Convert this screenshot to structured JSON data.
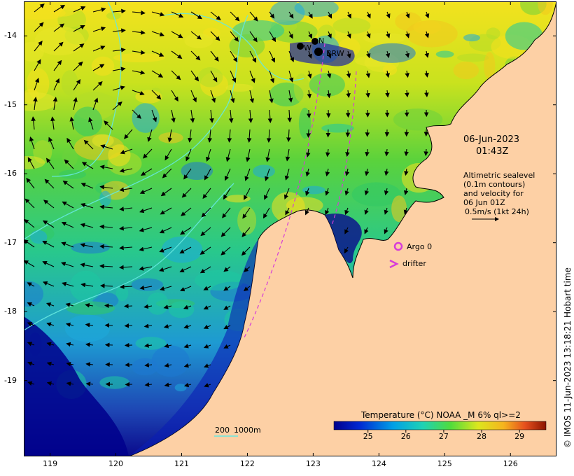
{
  "map": {
    "date": "06-Jun-2023",
    "time": "01:43Z",
    "altimetry_lines": [
      "Altimetric sealevel",
      "(0.1m contours)",
      "and velocity for",
      "06 Jun 01Z",
      "0.5m/s (1kt 24h)"
    ],
    "legend_argo": "Argo 0",
    "legend_drifter": "drifter",
    "colorbar_title": "Temperature (°C) NOAA _M 6% ql>=2",
    "colorbar_ticks": [
      "25",
      "26",
      "27",
      "28",
      "29"
    ],
    "colorbar_min": 24.1,
    "colorbar_max": 29.7,
    "depth_scale": [
      "200",
      "1000m"
    ],
    "station_labels": [
      "W",
      "N",
      "BRW"
    ],
    "credit": "© IMOS 11-Jun-2023 13:18:21 Hobart time",
    "lon_ticks": [
      "119",
      "120",
      "121",
      "122",
      "123",
      "124",
      "125",
      "126"
    ],
    "lat_ticks": [
      "-14",
      "-15",
      "-16",
      "-17",
      "-18",
      "-19"
    ],
    "lon_range": [
      118.6,
      126.7
    ],
    "lat_range": [
      -20.1,
      -13.5
    ]
  },
  "colors": {
    "land": "#fdd0a5",
    "contour": "#66e8e0",
    "drifter": "#d63cd9",
    "argo": "#d63cd9",
    "coldest": "#00008c",
    "warmest": "#8c1a00"
  }
}
